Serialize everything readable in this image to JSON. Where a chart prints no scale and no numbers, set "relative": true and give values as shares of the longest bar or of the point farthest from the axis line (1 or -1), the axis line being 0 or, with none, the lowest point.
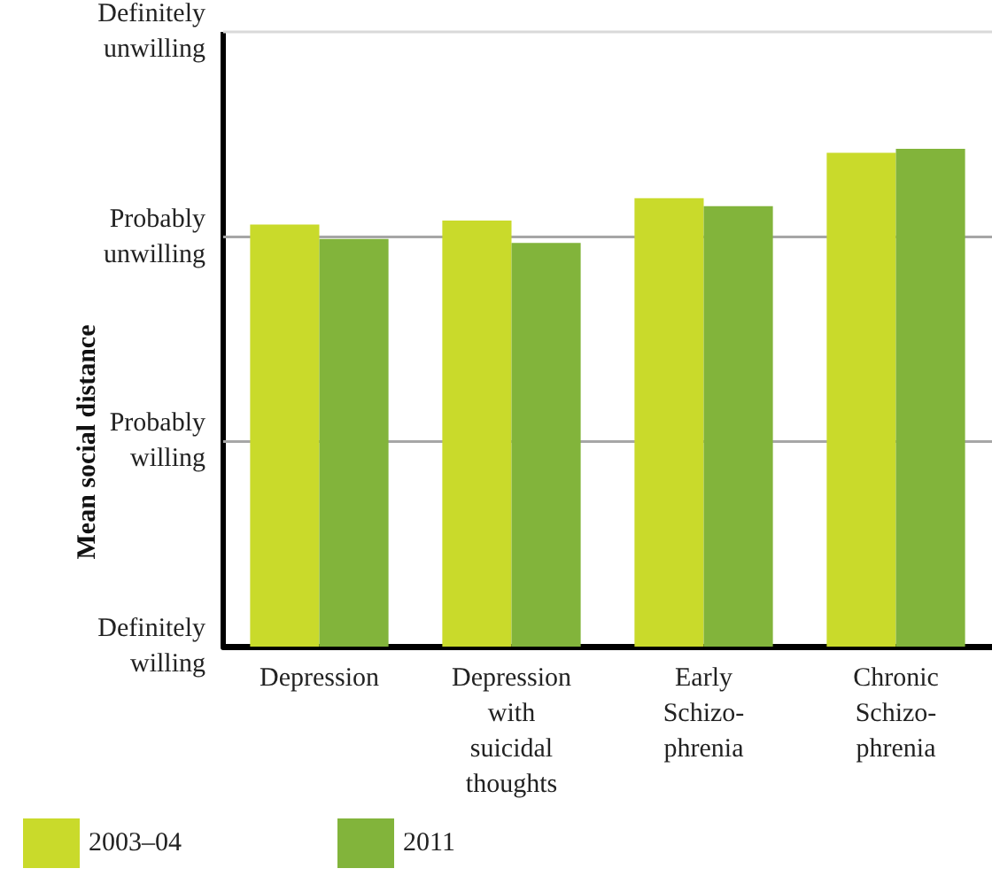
{
  "chart_data": {
    "type": "bar",
    "ylabel": "Mean social distance",
    "relative": true,
    "categories": [
      "Depression",
      "Depression\nwith\nsuicidal\nthoughts",
      "Early\nSchizo-\nphrenia",
      "Chronic\nSchizo-\nphrenia"
    ],
    "series": [
      {
        "name": "2003–04",
        "color": "#c9da2b",
        "values": [
          0.848,
          0.856,
          0.901,
          0.992
        ]
      },
      {
        "name": "2011",
        "color": "#82b43b",
        "values": [
          0.819,
          0.811,
          0.885,
          1
        ]
      }
    ],
    "ref_lines": [
      {
        "axis": "y",
        "value": 0,
        "label": "Definitely\nwilling",
        "color": "#000000"
      },
      {
        "axis": "y",
        "value": 0.412,
        "label": "Probably\nwilling",
        "color": "#a6a6a6"
      },
      {
        "axis": "y",
        "value": 0.823,
        "label": "Probably\nunwilling",
        "color": "#a6a6a6"
      },
      {
        "axis": "y",
        "value": 1.235,
        "label": "Definitely\nunwilling",
        "color": "#d9d9d9"
      }
    ],
    "legend": "bottom left"
  }
}
